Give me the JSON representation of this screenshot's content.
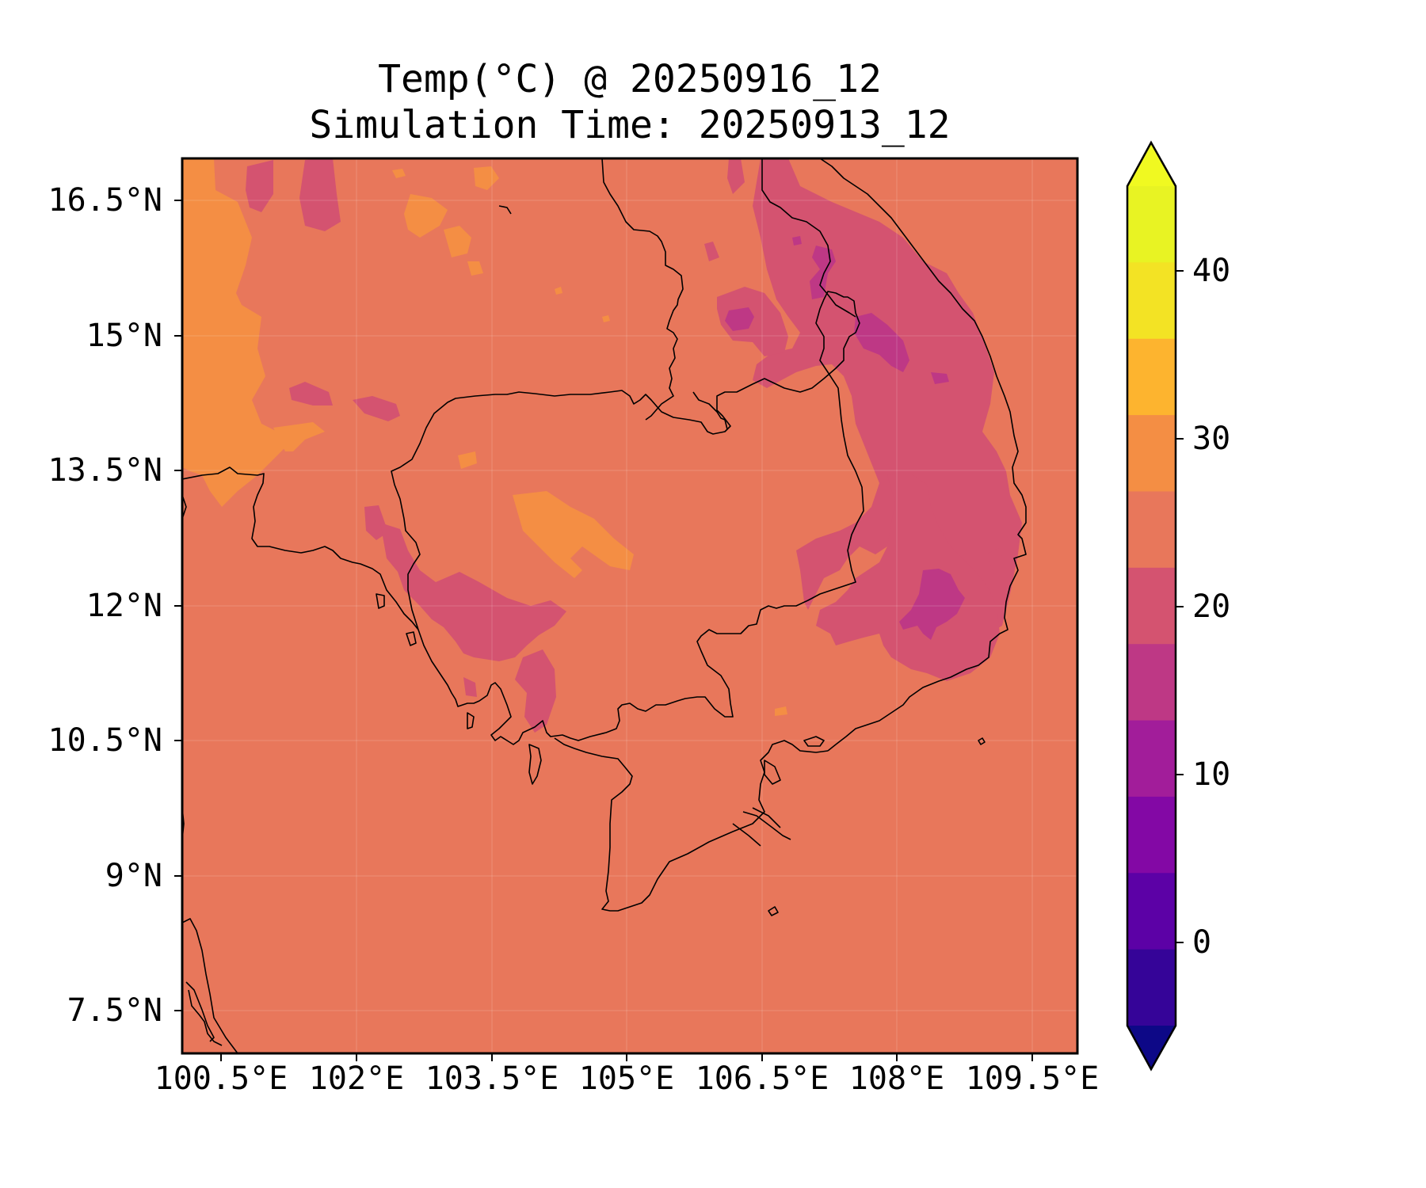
{
  "title": {
    "line1": "Temp(°C) @ 20250916_12",
    "line2": "Simulation Time: 20250913_12"
  },
  "map": {
    "region": "Indochina (Cambodia, southern Laos, eastern Thailand, southern Vietnam)",
    "lat_ticks": [
      "16.5°N",
      "15°N",
      "13.5°N",
      "12°N",
      "10.5°N",
      "9°N",
      "7.5°N"
    ],
    "lon_ticks": [
      "100.5°E",
      "102°E",
      "103.5°E",
      "105°E",
      "106.5°E",
      "108°E",
      "109.5°E"
    ],
    "background_color": "#e8775b",
    "grid": true
  },
  "colorbar": {
    "ticks": [
      "40",
      "30",
      "20",
      "10",
      "0"
    ],
    "extend": "both",
    "level_colors": [
      "#e8f323",
      "#f3e324",
      "#fdb42f",
      "#f48e44",
      "#e8775b",
      "#d45370",
      "#be3885",
      "#a21d9a",
      "#8308a5",
      "#5c01a6",
      "#350498"
    ],
    "under_color": "#0d0887",
    "over_color": "#f0f921"
  },
  "chart_data": {
    "type": "heatmap",
    "title": "Temp(°C) @ 20250916_12\nSimulation Time: 20250913_12",
    "xlabel": "",
    "ylabel": "",
    "xlim": [
      100.5,
      109.5
    ],
    "ylim": [
      7.5,
      16.5
    ],
    "colorbar_range": [
      -5,
      45
    ],
    "colorbar_step": 5,
    "colormap": "plasma",
    "value_summary": {
      "dominant_range_C": [
        25,
        30
      ],
      "warm_patches_C": [
        30,
        35
      ],
      "cool_highlands_C": [
        15,
        25
      ]
    }
  }
}
